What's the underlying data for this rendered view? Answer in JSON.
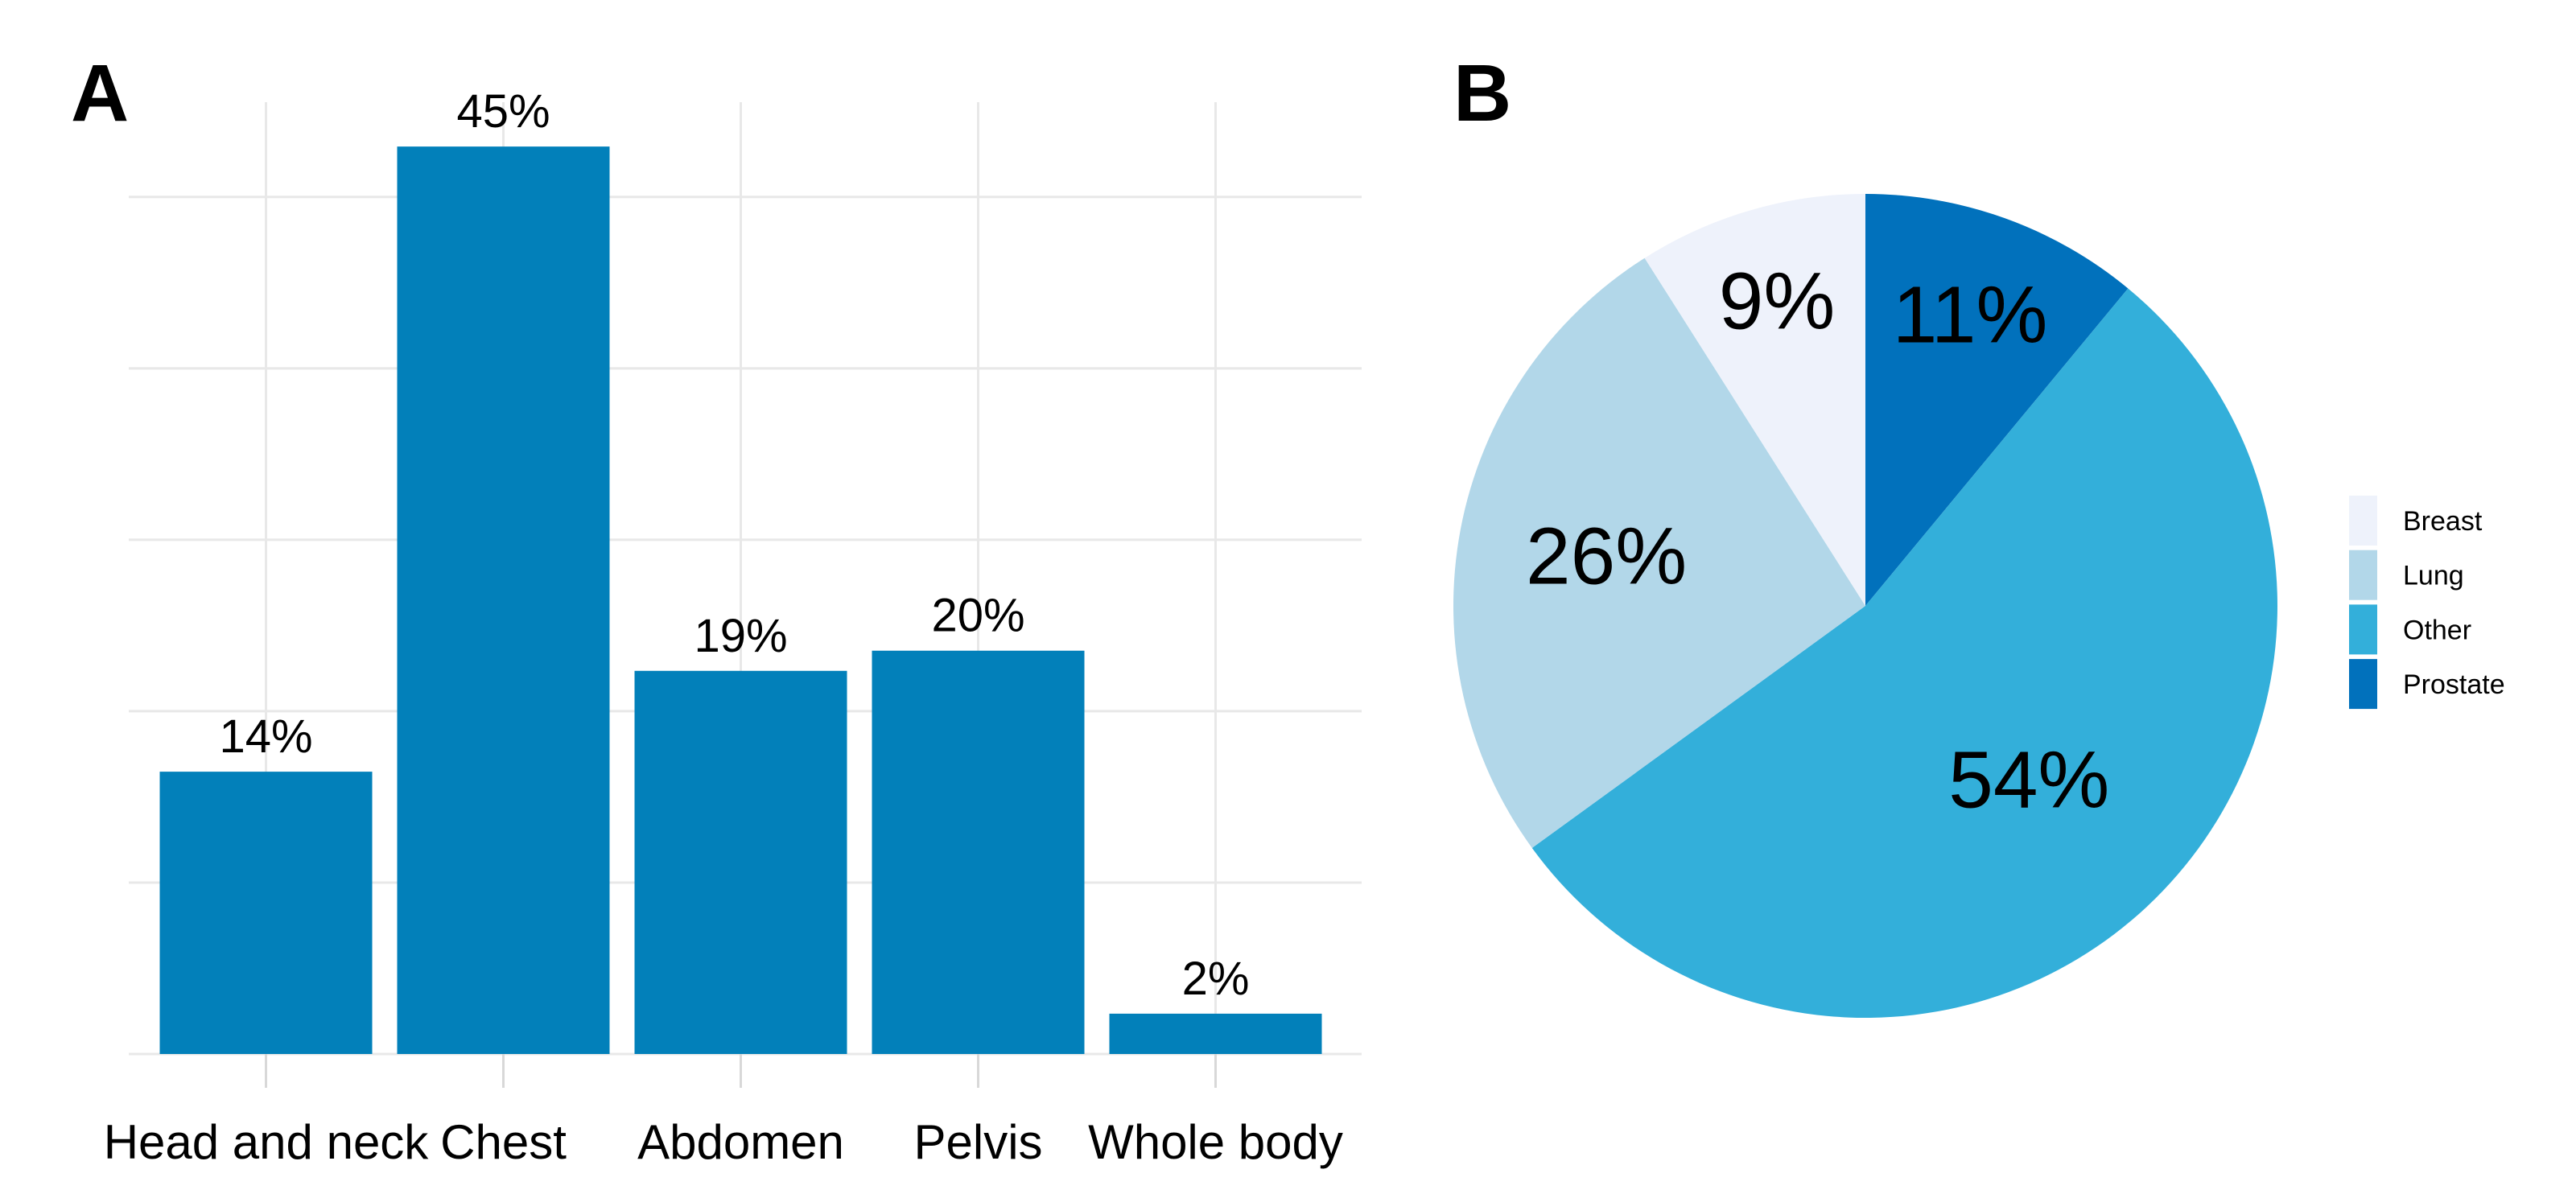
{
  "panels": {
    "a": {
      "label": "A"
    },
    "b": {
      "label": "B"
    }
  },
  "chart_data": [
    {
      "id": "bar-chart-body-region",
      "panel": "A",
      "type": "bar",
      "categories": [
        "Head and neck",
        "Chest",
        "Abdomen",
        "Pelvis",
        "Whole body"
      ],
      "values": [
        14,
        45,
        19,
        20,
        2
      ],
      "value_labels": [
        "14%",
        "45%",
        "19%",
        "20%",
        "2%"
      ],
      "title": "",
      "xlabel": "",
      "ylabel": "",
      "ylim": [
        0,
        47.2
      ],
      "gridline_values": [
        0,
        8.5,
        17,
        25.5,
        34,
        42.5
      ],
      "grid": true,
      "legend_position": "none",
      "bar_color": "#0280ba",
      "grid_color": "#e8e8e8",
      "tick_color": "#d8d8d8"
    },
    {
      "id": "pie-chart-tumour-type",
      "panel": "B",
      "type": "pie",
      "title": "",
      "start_angle_deg": 0,
      "direction": "clockwise",
      "slices": [
        {
          "name": "Prostate",
          "value": 11,
          "label": "11%",
          "color": "#0171bc",
          "label_radius": 0.75
        },
        {
          "name": "Other",
          "value": 54,
          "label": "54%",
          "color": "#33afda",
          "label_radius": 0.58
        },
        {
          "name": "Lung",
          "value": 26,
          "label": "26%",
          "color": "#b2d7e9",
          "label_radius": 0.64
        },
        {
          "name": "Breast",
          "value": 9,
          "label": "9%",
          "color": "#eef2fb",
          "label_radius": 0.77
        }
      ],
      "legend_position": "right",
      "legend_items": [
        "Breast",
        "Lung",
        "Other",
        "Prostate"
      ]
    }
  ]
}
